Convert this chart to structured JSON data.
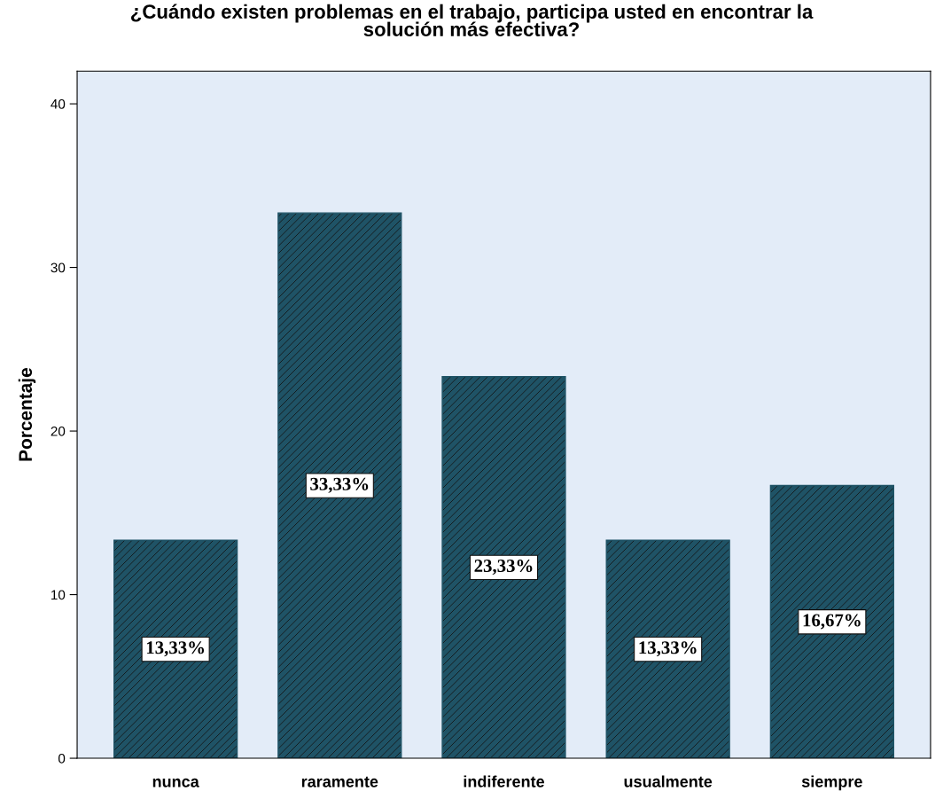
{
  "chart_data": {
    "type": "bar",
    "title": "¿Cuándo existen problemas en el trabajo, participa usted en encontrar la\nsolución más efectiva?",
    "ylabel": "Porcentaje",
    "categories": [
      "nunca",
      "raramente",
      "indiferente",
      "usualmente",
      "siempre"
    ],
    "values": [
      13.33,
      33.33,
      23.33,
      13.33,
      16.67
    ],
    "value_labels": [
      "13,33%",
      "33,33%",
      "23,33%",
      "13,33%",
      "16,67%"
    ],
    "color": "#1f5366",
    "ylim": [
      0,
      42
    ],
    "yticks": [
      0,
      10,
      20,
      30,
      40
    ]
  }
}
